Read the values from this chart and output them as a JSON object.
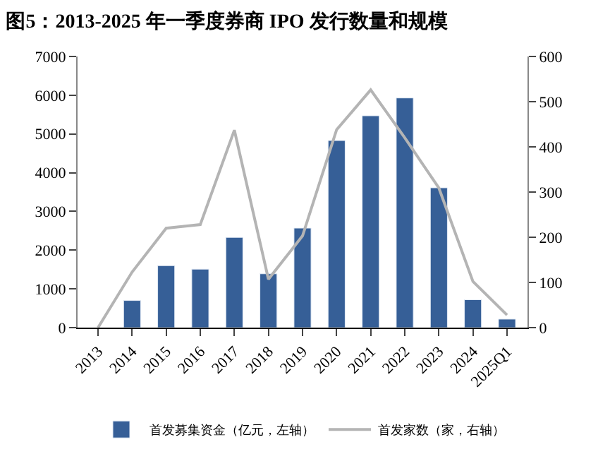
{
  "chart_data": {
    "type": "bar",
    "title": "图5：2013-2025 年一季度券商 IPO 发行数量和规模",
    "categories": [
      "2013",
      "2014",
      "2015",
      "2016",
      "2017",
      "2018",
      "2019",
      "2020",
      "2021",
      "2022",
      "2023",
      "2024",
      "2025Q1"
    ],
    "series": [
      {
        "name": "首发募集资金（亿元，左轴）",
        "color": "#365f97",
        "values": [
          null,
          700,
          1600,
          1510,
          2330,
          1390,
          2570,
          4830,
          5470,
          5930,
          3610,
          720,
          220
        ]
      },
      {
        "name": "首发家数（家，右轴）",
        "type": "line",
        "axis": "y2",
        "color": "#b4b4b4",
        "values": [
          0,
          123,
          220,
          228,
          437,
          107,
          203,
          438,
          526,
          420,
          309,
          102,
          28
        ]
      }
    ],
    "ylim": [
      0,
      7000
    ],
    "yticks": [
      0,
      1000,
      2000,
      3000,
      4000,
      5000,
      6000,
      7000
    ],
    "y2lim": [
      0,
      600
    ],
    "y2ticks": [
      0,
      100,
      200,
      300,
      400,
      500,
      600
    ],
    "grid": false,
    "legend": "bottom"
  }
}
